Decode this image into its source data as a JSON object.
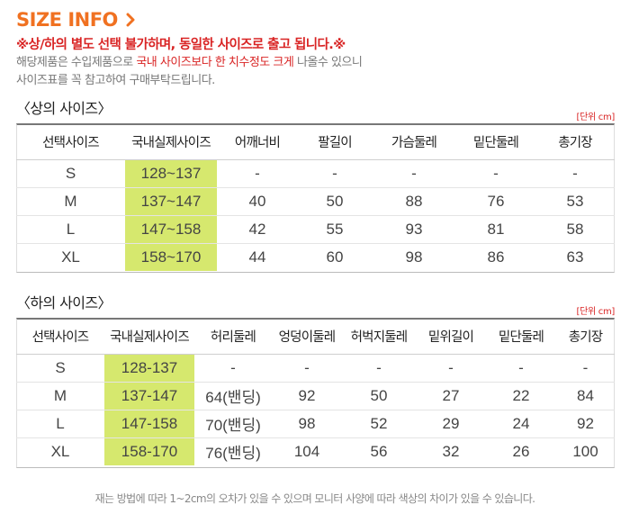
{
  "header": {
    "title": "SIZE INFO",
    "notice": "※상/하의 별도 선택 불가하며, 동일한 사이즈로 출고 됩니다.※",
    "desc_line1_a": "해당제품은 수입제품으로 ",
    "desc_line1_hl": "국내 사이즈보다 한 치수정도 크게",
    "desc_line1_b": " 나올수 있으니",
    "desc_line2": "사이즈표를 꼭 참고하여 구매부탁드립니다.",
    "accent_color": "#f07121",
    "notice_color": "#d92424"
  },
  "top": {
    "section_title": "〈상의 사이즈〉",
    "unit": "[단위 cm]",
    "columns": [
      "선택사이즈",
      "국내실제사이즈",
      "어깨너비",
      "팔길이",
      "가슴둘레",
      "밑단둘레",
      "총기장"
    ],
    "rows": [
      [
        "S",
        "128~137",
        "-",
        "-",
        "-",
        "-",
        "-"
      ],
      [
        "M",
        "137~147",
        "40",
        "50",
        "88",
        "76",
        "53"
      ],
      [
        "L",
        "147~158",
        "42",
        "55",
        "93",
        "81",
        "58"
      ],
      [
        "XL",
        "158~170",
        "44",
        "60",
        "98",
        "86",
        "63"
      ]
    ]
  },
  "bottom": {
    "section_title": "〈하의 사이즈〉",
    "unit": "[단위 cm]",
    "columns": [
      "선택사이즈",
      "국내실제사이즈",
      "허리둘레",
      "엉덩이둘레",
      "허벅지둘레",
      "밑위길이",
      "밑단둘레",
      "총기장"
    ],
    "rows": [
      [
        "S",
        "128-137",
        "-",
        "-",
        "-",
        "-",
        "-",
        "-"
      ],
      [
        "M",
        "137-147",
        "64(밴딩)",
        "92",
        "50",
        "27",
        "22",
        "84"
      ],
      [
        "L",
        "147-158",
        "70(밴딩)",
        "98",
        "52",
        "29",
        "24",
        "92"
      ],
      [
        "XL",
        "158-170",
        "76(밴딩)",
        "104",
        "56",
        "32",
        "26",
        "100"
      ]
    ]
  },
  "footnote": "재는 방법에 따라 1~2cm의 오차가 있을 수 있으며 모니터 사양에 따라 색상의 차이가 있을 수 있습니다.",
  "highlight_color": "#d6e86e"
}
